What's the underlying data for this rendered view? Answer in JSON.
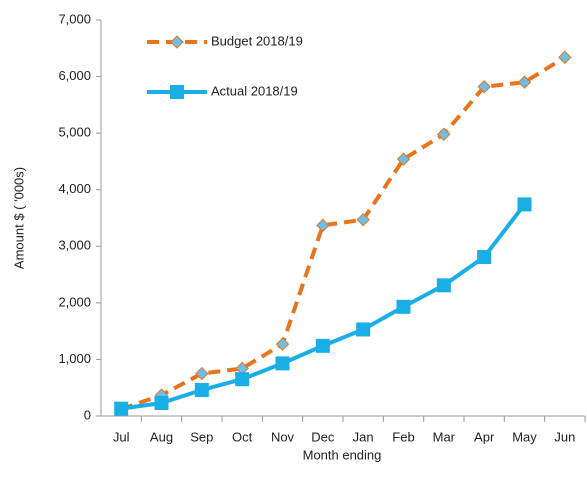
{
  "chart_data": {
    "type": "line",
    "x_label": "Month ending",
    "y_label": "Amount $ ( '000s)",
    "categories": [
      "Jul",
      "Aug",
      "Sep",
      "Oct",
      "Nov",
      "Dec",
      "Jan",
      "Feb",
      "Mar",
      "Apr",
      "May",
      "Jun"
    ],
    "series": [
      {
        "name": "Budget 2018/19",
        "color": "#e8741e",
        "marker_color": "#6cbfe6",
        "dashed": true,
        "marker": "diamond",
        "values": [
          120,
          370,
          750,
          840,
          1270,
          3370,
          3470,
          4540,
          4980,
          5820,
          5900,
          6340
        ]
      },
      {
        "name": "Actual 2018/19",
        "color": "#1aaee6",
        "marker_color": "#1aaee6",
        "dashed": false,
        "marker": "square",
        "values": [
          130,
          230,
          460,
          650,
          930,
          1240,
          1530,
          1930,
          2310,
          2810,
          3740,
          null
        ]
      }
    ],
    "ylim": [
      0,
      7000
    ],
    "yticks": [
      0,
      {
        "value": 1000,
        "label": "1,000"
      },
      {
        "value": 2000,
        "label": "2,000"
      },
      {
        "value": 3000,
        "label": "3,000"
      },
      {
        "value": 4000,
        "label": "4,000"
      },
      {
        "value": 5000,
        "label": "5,000"
      },
      {
        "value": 6000,
        "label": "6,000"
      },
      {
        "value": 7000,
        "label": "7,000"
      }
    ],
    "grid": false,
    "legend": "upper left"
  }
}
